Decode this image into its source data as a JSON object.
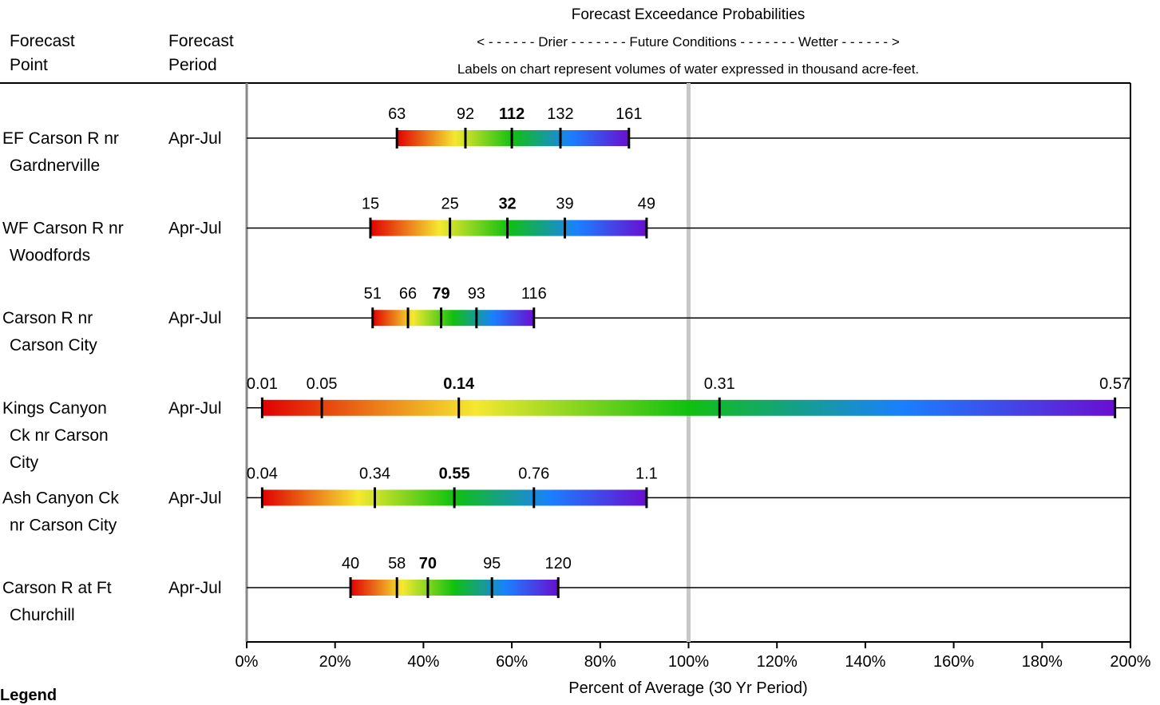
{
  "header": {
    "title": "Forecast Exceedance Probabilities",
    "direction_line": "< - - - - - - Drier - - - - - - - Future Conditions - - - - - - - Wetter - - - - - - >",
    "note": "Labels on chart represent volumes of water expressed in thousand acre-feet.",
    "col_point": [
      "Forecast",
      "Point"
    ],
    "col_period": [
      "Forecast",
      "Period"
    ]
  },
  "chart_data": {
    "type": "bar",
    "title": "Forecast Exceedance Probabilities",
    "xlabel": "Percent of Average (30 Yr Period)",
    "xlim": [
      0,
      200
    ],
    "xticks": [
      "0%",
      "20%",
      "40%",
      "60%",
      "80%",
      "100%",
      "120%",
      "140%",
      "160%",
      "180%",
      "200%"
    ],
    "reference_line": 100,
    "gradient_colors": [
      "#e00000",
      "#f5e830",
      "#10c010",
      "#1a80ff",
      "#6a0ed0"
    ],
    "rows": [
      {
        "point": [
          "EF Carson R nr",
          "Gardnerville"
        ],
        "period": "Apr-Jul",
        "pct": [
          34,
          49.5,
          60,
          71,
          86.5
        ],
        "labels": [
          "63",
          "92",
          "112",
          "132",
          "161"
        ]
      },
      {
        "point": [
          "WF Carson R nr",
          "Woodfords"
        ],
        "period": "Apr-Jul",
        "pct": [
          28,
          46,
          59,
          72,
          90.5
        ],
        "labels": [
          "15",
          "25",
          "32",
          "39",
          "49"
        ]
      },
      {
        "point": [
          "Carson R nr",
          "Carson City"
        ],
        "period": "Apr-Jul",
        "pct": [
          28.5,
          36.5,
          44,
          52,
          65
        ],
        "labels": [
          "51",
          "66",
          "79",
          "93",
          "116"
        ]
      },
      {
        "point": [
          "Kings Canyon",
          "Ck nr Carson",
          "City"
        ],
        "period": "Apr-Jul",
        "pct": [
          3.5,
          17,
          48,
          107,
          196.5
        ],
        "labels": [
          "0.01",
          "0.05",
          "0.14",
          "0.31",
          "0.57"
        ]
      },
      {
        "point": [
          "Ash Canyon Ck",
          "nr Carson City"
        ],
        "period": "Apr-Jul",
        "pct": [
          3.5,
          29,
          47,
          65,
          90.5
        ],
        "labels": [
          "0.04",
          "0.34",
          "0.55",
          "0.76",
          "1.1"
        ]
      },
      {
        "point": [
          "Carson R at Ft",
          "Churchill"
        ],
        "period": "Apr-Jul",
        "pct": [
          23.5,
          34,
          41,
          55.5,
          70.5
        ],
        "labels": [
          "40",
          "58",
          "70",
          "95",
          "120"
        ]
      }
    ]
  },
  "legend": {
    "label": "Legend"
  }
}
